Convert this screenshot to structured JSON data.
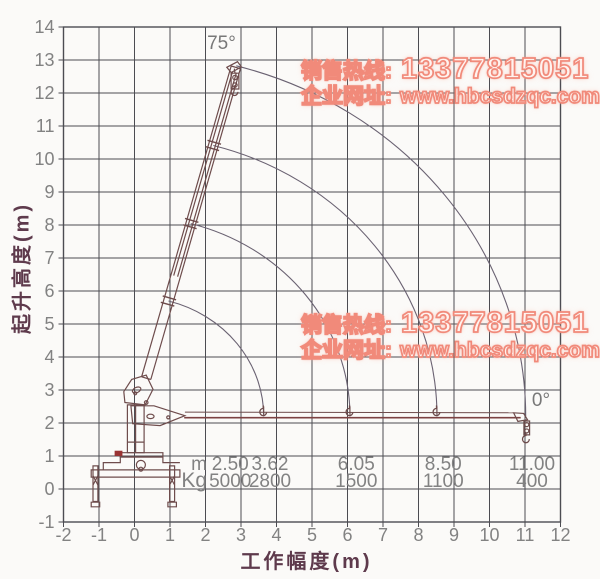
{
  "watermark": {
    "hotline_label": "销售热线:",
    "hotline_number": "13377815051",
    "website_label": "企业网址:",
    "website_url": "www.hbcsdzqc.com"
  },
  "chart_data": {
    "type": "line",
    "title": "",
    "xlabel": "工作幅度(m)",
    "ylabel": "起升高度(m)",
    "xlim": [
      -2,
      12
    ],
    "ylim": [
      -1,
      14
    ],
    "x_ticks": [
      -2,
      -1,
      0,
      1,
      2,
      3,
      4,
      5,
      6,
      7,
      8,
      9,
      10,
      11,
      12
    ],
    "y_ticks": [
      -1,
      0,
      1,
      2,
      3,
      4,
      5,
      6,
      7,
      8,
      9,
      10,
      11,
      12,
      13,
      14
    ],
    "grid": true,
    "legend": "none",
    "boom": {
      "pivot_x": 0.02,
      "pivot_y": 2.2,
      "max_angle_deg": 75,
      "min_angle_deg": 0
    },
    "envelope_radii_m": [
      3.62,
      6.05,
      8.5,
      11.0
    ],
    "angle_labels": [
      {
        "text": "75°",
        "x": 2.45,
        "y": 13.33
      },
      {
        "text": "0°",
        "x": 11.45,
        "y": 2.52
      }
    ],
    "load_table": {
      "row_labels": [
        "m",
        "Kg"
      ],
      "columns": [
        {
          "radius_m": "2.50",
          "load_kg": "5000"
        },
        {
          "radius_m": "3.62",
          "load_kg": "2800"
        },
        {
          "radius_m": "6.05",
          "load_kg": "1500"
        },
        {
          "radius_m": "8.50",
          "load_kg": "1100"
        },
        {
          "radius_m": "11.00",
          "load_kg": "400"
        }
      ],
      "column_x": [
        2.5,
        3.62,
        6.05,
        8.5,
        11.0
      ]
    }
  },
  "colors": {
    "background": "#fbfaf8",
    "grid": "#4c4c52",
    "tick_text": "#828282",
    "axis_title": "#5e3a4c",
    "arc": "#6a6272",
    "crane": "#6e4c4c",
    "crane_red": "#993333",
    "boom_0deg": "#7c4242",
    "watermark_stroke": "#f18a7a",
    "watermark_fill": "#fff3ef"
  }
}
